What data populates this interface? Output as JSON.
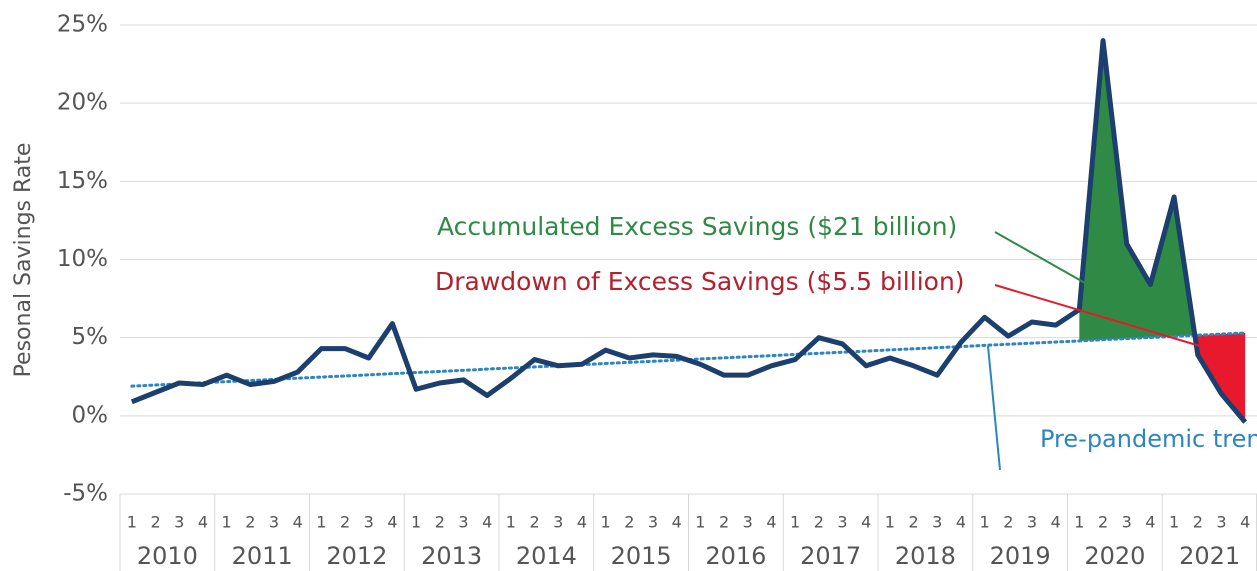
{
  "chart_data": {
    "type": "line",
    "y_label": "Pesonal Savings Rate",
    "categories": [
      "1",
      "2",
      "3",
      "4",
      "1",
      "2",
      "3",
      "4",
      "1",
      "2",
      "3",
      "4",
      "1",
      "2",
      "3",
      "4",
      "1",
      "2",
      "3",
      "4",
      "1",
      "2",
      "3",
      "4",
      "1",
      "2",
      "3",
      "4",
      "1",
      "2",
      "3",
      "4",
      "1",
      "2",
      "3",
      "4",
      "1",
      "2",
      "3",
      "4",
      "1",
      "2",
      "3",
      "4",
      "1",
      "2",
      "3",
      "4"
    ],
    "years": [
      "2010",
      "2011",
      "2012",
      "2013",
      "2014",
      "2015",
      "2016",
      "2017",
      "2018",
      "2019",
      "2020",
      "2021"
    ],
    "series": [
      {
        "name": "Personal savings rate",
        "color": "#1c3f6e",
        "values": [
          0.9,
          1.5,
          2.1,
          2.0,
          2.6,
          2.0,
          2.2,
          2.8,
          4.3,
          4.3,
          3.7,
          5.9,
          1.7,
          2.1,
          2.3,
          1.3,
          2.4,
          3.6,
          3.2,
          3.3,
          4.2,
          3.7,
          3.9,
          3.8,
          3.3,
          2.6,
          2.6,
          3.2,
          3.6,
          5.0,
          4.6,
          3.2,
          3.7,
          3.2,
          2.6,
          4.7,
          6.3,
          5.1,
          6.0,
          5.8,
          6.8,
          24.0,
          11.0,
          8.4,
          14.0,
          3.9,
          1.4,
          -0.4
        ]
      },
      {
        "name": "Pre-pandemic trend",
        "color": "#2e86c1",
        "values": [
          1.9,
          1.97,
          2.04,
          2.12,
          2.19,
          2.26,
          2.33,
          2.41,
          2.48,
          2.55,
          2.62,
          2.7,
          2.77,
          2.84,
          2.91,
          2.99,
          3.06,
          3.13,
          3.2,
          3.27,
          3.35,
          3.42,
          3.49,
          3.56,
          3.64,
          3.71,
          3.78,
          3.85,
          3.93,
          4.0,
          4.07,
          4.14,
          4.22,
          4.29,
          4.36,
          4.43,
          4.51,
          4.58,
          4.65,
          4.72,
          4.79,
          4.87,
          4.94,
          5.01,
          5.08,
          5.16,
          5.23,
          5.3
        ]
      }
    ],
    "annotations": [
      {
        "text": "Accumulated Excess Savings ($21 billion)",
        "color": "#2f8a46"
      },
      {
        "text": "Drawdown of Excess Savings ($5.5 billion)",
        "color": "#b3202e"
      }
    ],
    "excess_color": "#2f8a46",
    "drawdown_color": "#e8192c",
    "ylim": [
      -5,
      25
    ],
    "yticks": [
      {
        "value": -5,
        "label": "-5%"
      },
      {
        "value": 0,
        "label": "0%"
      },
      {
        "value": 5,
        "label": "5%"
      },
      {
        "value": 10,
        "label": "10%"
      },
      {
        "value": 15,
        "label": "15%"
      },
      {
        "value": 20,
        "label": "20%"
      },
      {
        "value": 25,
        "label": "25%"
      }
    ],
    "grid": true
  }
}
